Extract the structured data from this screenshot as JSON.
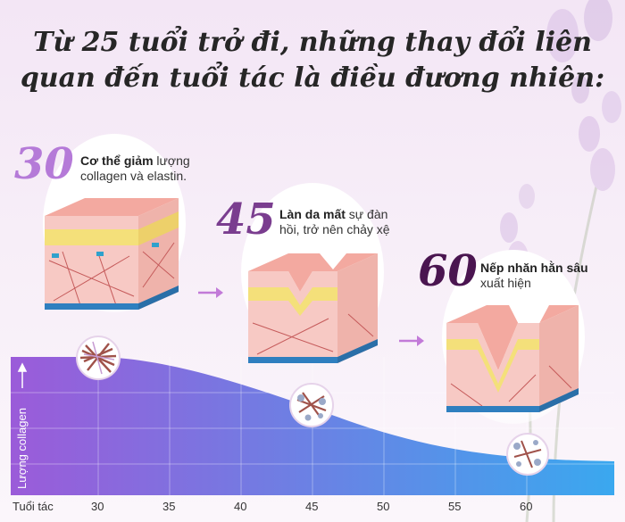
{
  "headline": {
    "line1": "Từ 25 tuổi trở đi, những thay đổi liên",
    "line2": "quan đến tuổi tác là điều đương nhiên:"
  },
  "stages": [
    {
      "age": "30",
      "bold": "Cơ thể giảm",
      "rest1": " lượng",
      "rest2": "collagen và elastin.",
      "age_color": "#b57ad8"
    },
    {
      "age": "45",
      "bold": "Làn da mất",
      "rest1": " sự đàn",
      "rest2": "hồi, trở nên chảy xệ",
      "age_color": "#7a3d8f"
    },
    {
      "age": "60",
      "bold": "Nếp nhăn hằn sâu",
      "rest1": "",
      "rest2": "xuất hiện",
      "age_color": "#4a1550"
    }
  ],
  "chart": {
    "ylabel": "Lượng collagen",
    "xlabel": "Tuổi tác",
    "ticks": [
      "30",
      "35",
      "40",
      "45",
      "50",
      "55",
      "60"
    ],
    "gradient_start": "#9a5ad8",
    "gradient_end": "#39a6ee"
  },
  "icons": {
    "arrow": "arrow-right-icon",
    "fiber": "collagen-fiber-icon",
    "up": "arrow-up-icon"
  }
}
